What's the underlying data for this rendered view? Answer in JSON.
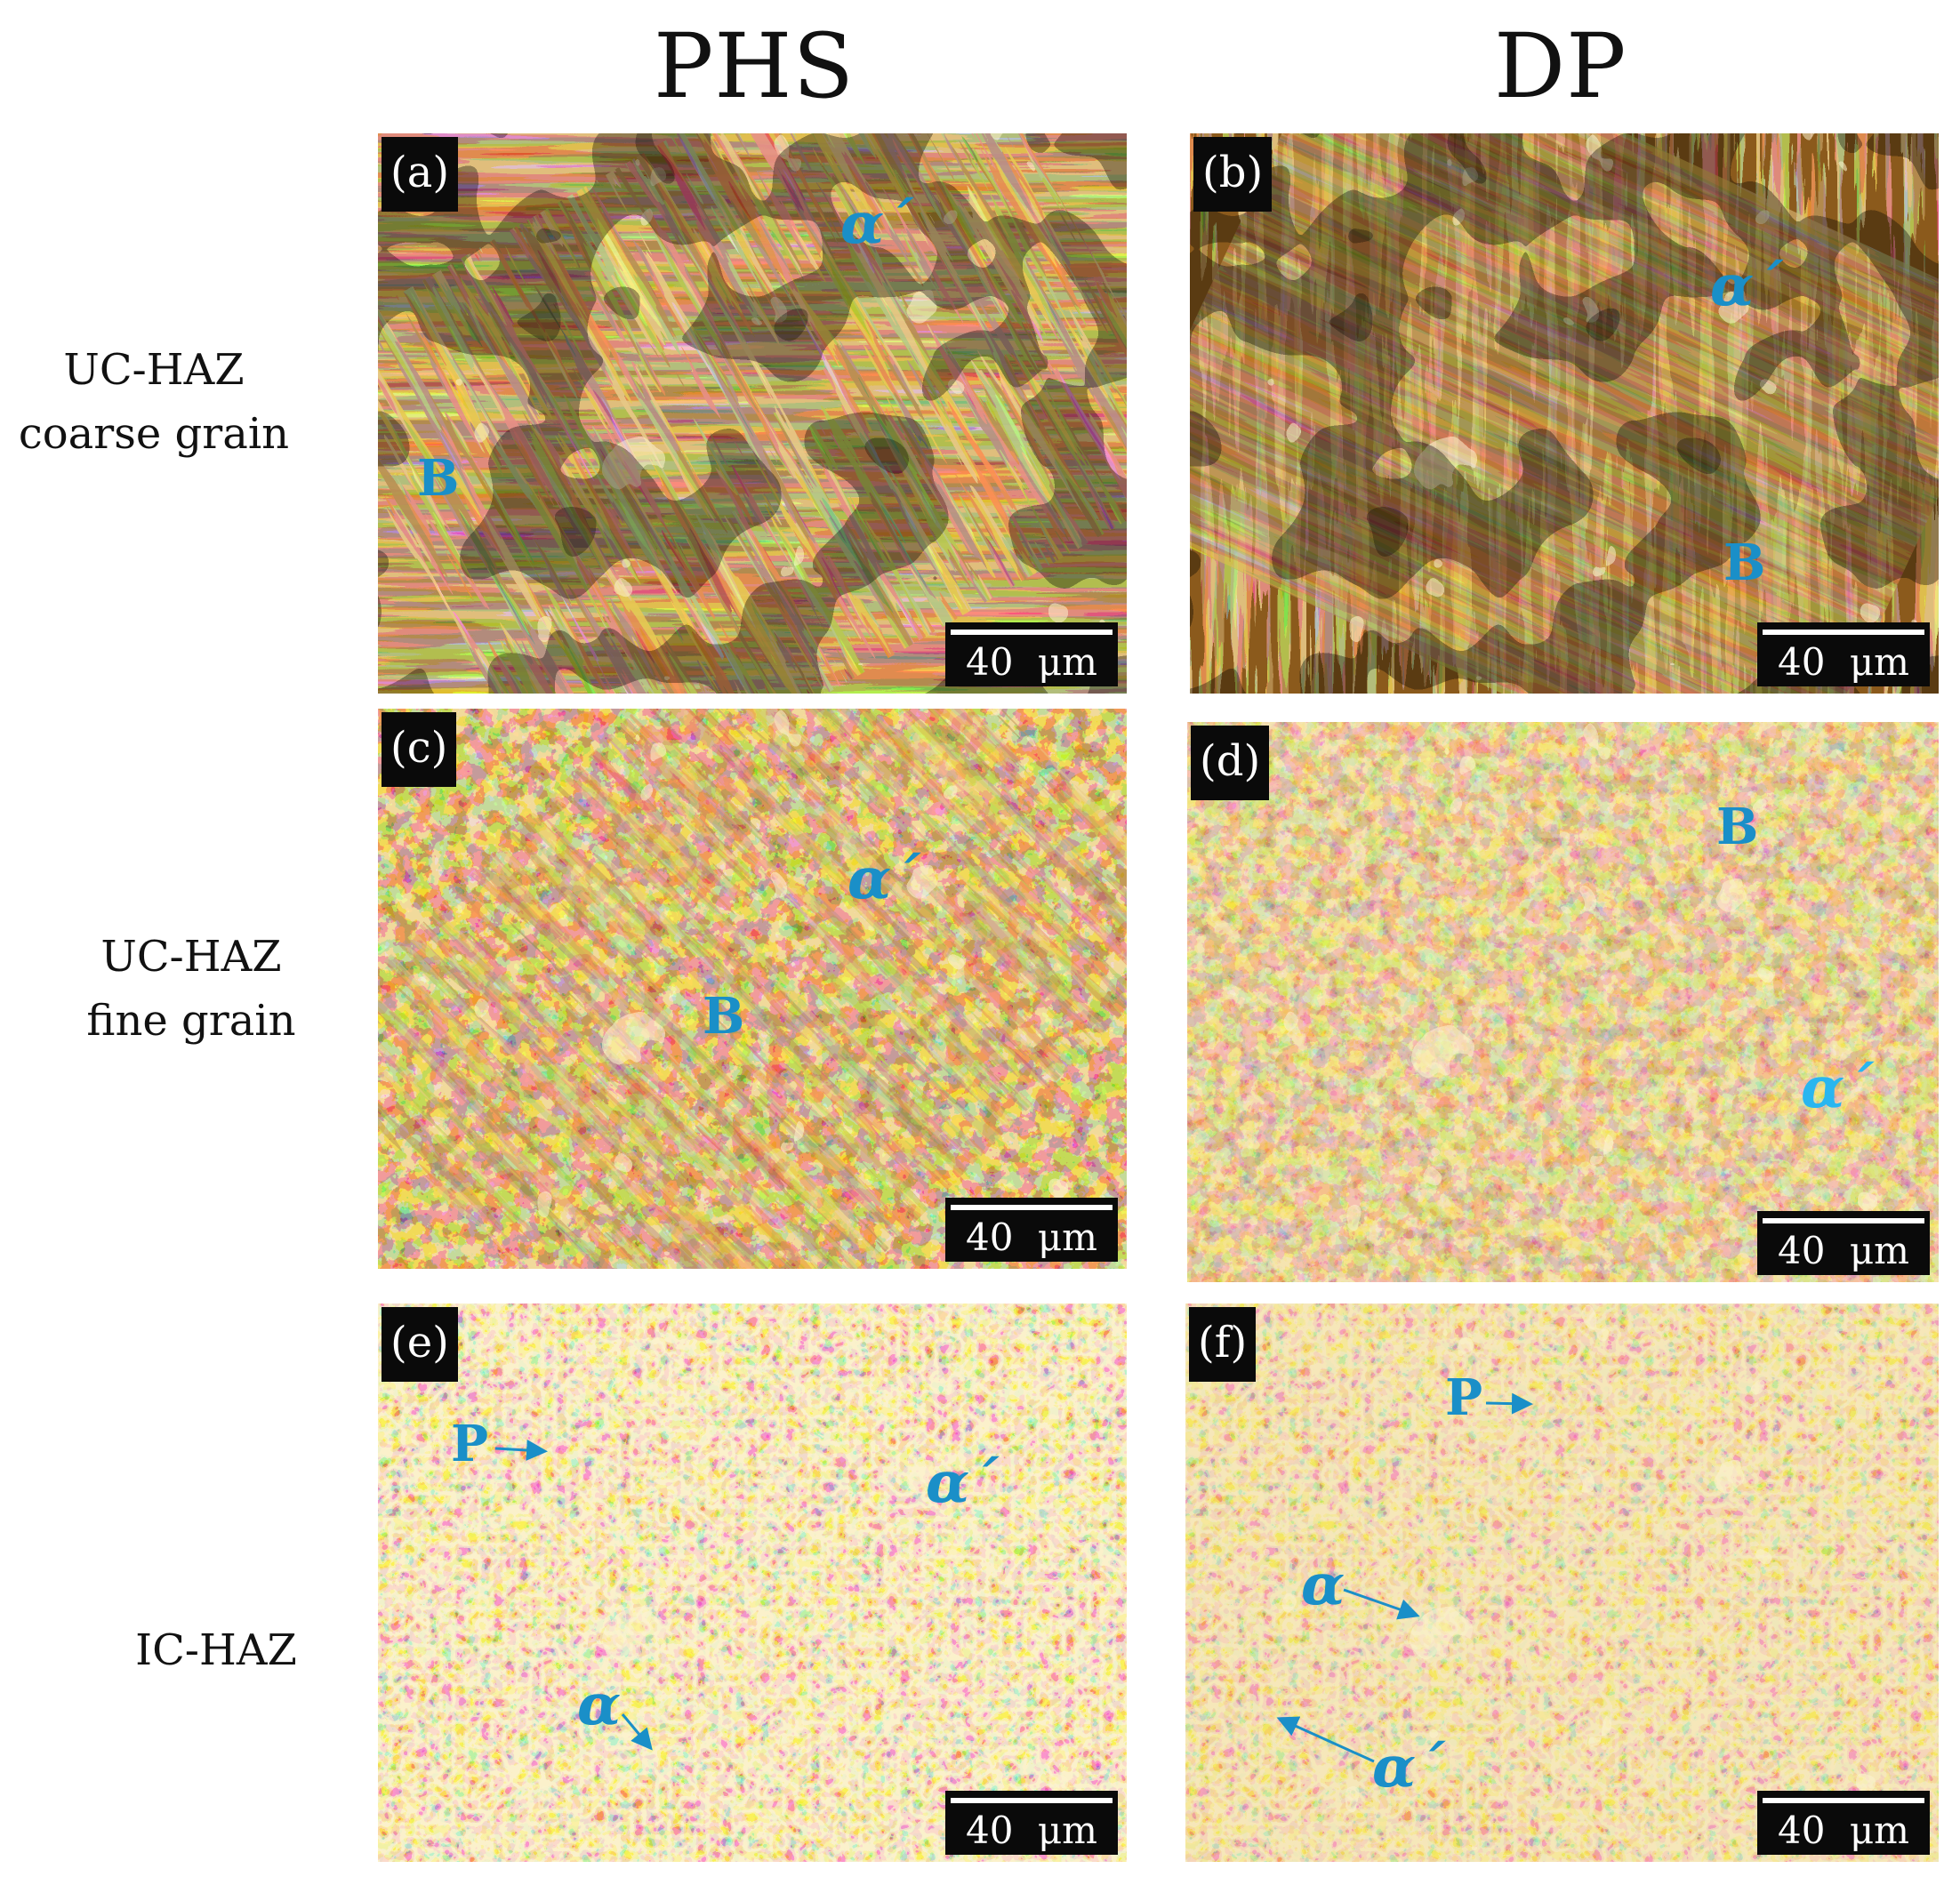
{
  "columns": {
    "left": "PHS",
    "right": "DP"
  },
  "rows": [
    {
      "line1": "UC-HAZ",
      "line2": "coarse grain"
    },
    {
      "line1": "UC-HAZ",
      "line2": "fine grain"
    },
    {
      "line1": "IC-HAZ",
      "line2": ""
    }
  ],
  "scale_label": "40 μm",
  "panels": [
    {
      "label": "(a)",
      "ann": [
        "α´",
        "B"
      ]
    },
    {
      "label": "(b)",
      "ann": [
        "α´",
        "B"
      ]
    },
    {
      "label": "(c)",
      "ann": [
        "α´",
        "B"
      ]
    },
    {
      "label": "(d)",
      "ann": [
        "B",
        "α´"
      ]
    },
    {
      "label": "(e)",
      "ann": [
        "P",
        "α´",
        "α"
      ]
    },
    {
      "label": "(f)",
      "ann": [
        "P",
        "α",
        "α´"
      ]
    }
  ],
  "colors": {
    "annotation": "#1a8fc8",
    "bright_phase": "#f3d88f",
    "dark_phase": "#3a1a08"
  }
}
